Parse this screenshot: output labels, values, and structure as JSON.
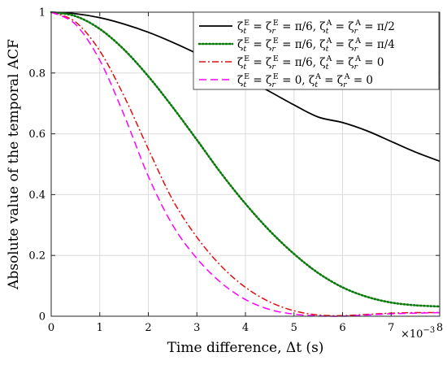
{
  "chart_data": {
    "type": "line",
    "xlabel": "Time difference, Δt (s)",
    "ylabel": "Absolute value of the temporal ACF",
    "x_exponent_label": "×10",
    "x_exponent_power": "−3",
    "xlim": [
      0,
      8
    ],
    "ylim": [
      0,
      1
    ],
    "xticks": [
      0,
      1,
      2,
      3,
      4,
      5,
      6,
      7,
      8
    ],
    "yticks": [
      0,
      0.2,
      0.4,
      0.6,
      0.8,
      1
    ],
    "xtick_labels": [
      "0",
      "1",
      "2",
      "3",
      "4",
      "5",
      "6",
      "7",
      "8"
    ],
    "ytick_labels": [
      "0",
      "0.2",
      "0.4",
      "0.6",
      "0.8",
      "1"
    ],
    "grid": true,
    "legend_position": "top-right",
    "series": [
      {
        "name": "ζtE = ζrE = π/6, ζtA = ζrA = π/2",
        "legend": {
          "a1": "ζ",
          "a1sub": "t",
          "a1sup": "E",
          "a2": " = ζ",
          "a2sub": "r",
          "a2sup": "E",
          "a3": " = π/6, ζ",
          "a3sub": "t",
          "a3sup": "A",
          "a4": " = ζ",
          "a4sub": "r",
          "a4sup": "A",
          "a5": " = π/2"
        },
        "color": "#000000",
        "dash": "solid",
        "x": [
          0,
          0.5,
          1,
          1.5,
          2,
          2.5,
          3,
          3.5,
          4,
          4.5,
          5,
          5.5,
          6,
          6.5,
          7,
          7.5,
          8
        ],
        "y": [
          1.0,
          0.995,
          0.982,
          0.961,
          0.934,
          0.901,
          0.864,
          0.824,
          0.782,
          0.739,
          0.695,
          0.655,
          0.637,
          0.61,
          0.575,
          0.54,
          0.51
        ]
      },
      {
        "name": "ζtE = ζrE = π/6, ζtA = ζrA = π/4",
        "legend": {
          "a1": "ζ",
          "a1sub": "t",
          "a1sup": "E",
          "a2": " = ζ",
          "a2sub": "r",
          "a2sup": "E",
          "a3": " = π/6, ζ",
          "a3sub": "t",
          "a3sup": "A",
          "a4": " = ζ",
          "a4sub": "r",
          "a4sup": "A",
          "a5": " = π/4"
        },
        "color": "#0a7a0a",
        "dash": "dotted",
        "x": [
          0,
          0.5,
          1,
          1.5,
          2,
          2.5,
          3,
          3.5,
          4,
          4.5,
          5,
          5.5,
          6,
          6.5,
          7,
          7.5,
          8
        ],
        "y": [
          1.0,
          0.987,
          0.945,
          0.877,
          0.789,
          0.688,
          0.58,
          0.47,
          0.37,
          0.281,
          0.205,
          0.142,
          0.095,
          0.064,
          0.045,
          0.036,
          0.032
        ]
      },
      {
        "name": "ζtE = ζrE = π/6, ζtA = ζrA = 0",
        "legend": {
          "a1": "ζ",
          "a1sub": "t",
          "a1sup": "E",
          "a2": " = ζ",
          "a2sub": "r",
          "a2sup": "E",
          "a3": " = π/6, ζ",
          "a3sub": "t",
          "a3sup": "A",
          "a4": " = ζ",
          "a4sub": "r",
          "a4sup": "A",
          "a5": " = 0"
        },
        "color": "#e01010",
        "dash": "dashdot",
        "x": [
          0,
          0.5,
          1,
          1.5,
          2,
          2.5,
          3,
          3.5,
          4,
          4.5,
          5,
          5.5,
          6,
          6.5,
          7,
          7.5,
          8
        ],
        "y": [
          1.0,
          0.968,
          0.873,
          0.724,
          0.55,
          0.383,
          0.26,
          0.165,
          0.095,
          0.047,
          0.018,
          0.004,
          0.002,
          0.006,
          0.01,
          0.012,
          0.012
        ]
      },
      {
        "name": "ζtE = ζrE = 0, ζtA = ζrA = 0",
        "legend": {
          "a1": "ζ",
          "a1sub": "t",
          "a1sup": "E",
          "a2": " = ζ",
          "a2sub": "r",
          "a2sup": "E",
          "a3": " = 0, ζ",
          "a3sub": "t",
          "a3sup": "A",
          "a4": " = ζ",
          "a4sub": "r",
          "a4sup": "A",
          "a5": " = 0"
        },
        "color": "#ff00ff",
        "dash": "dashed",
        "x": [
          0,
          0.5,
          1,
          1.5,
          2,
          2.5,
          3,
          3.5,
          4,
          4.5,
          5,
          5.5,
          6,
          6.5,
          7,
          7.5,
          8
        ],
        "y": [
          1.0,
          0.96,
          0.842,
          0.662,
          0.46,
          0.3,
          0.19,
          0.11,
          0.055,
          0.022,
          0.007,
          0.001,
          0.0,
          0.004,
          0.008,
          0.01,
          0.012
        ]
      }
    ]
  }
}
